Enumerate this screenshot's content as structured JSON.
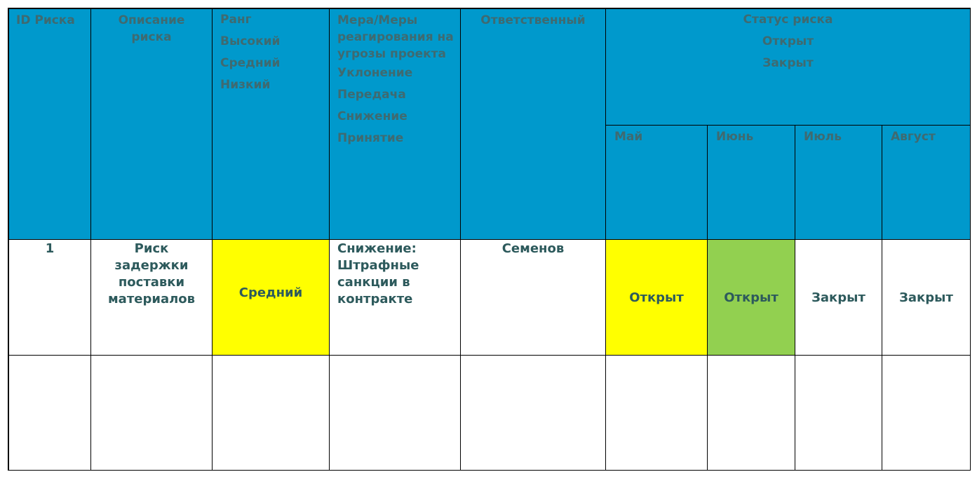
{
  "table": {
    "header": {
      "id": "ID  Риска",
      "description": "Описание риска",
      "rank": [
        "Ранг",
        "Высокий",
        "Средний",
        "Низкий"
      ],
      "response": [
        "Мера/Меры реагирования на угрозы проекта",
        "Уклонение",
        "Передача",
        "Снижение",
        "Принятие"
      ],
      "owner": "Ответственный",
      "status": [
        "Статус риска",
        "Открыт",
        "Закрыт"
      ],
      "months": [
        "Май",
        "Июнь",
        "Июль",
        "Август"
      ]
    },
    "rows": [
      {
        "id": "1",
        "description": "Риск задержки поставки материалов",
        "rank": "Средний",
        "response": "Снижение: Штрафные санкции в контракте",
        "owner": "Семенов",
        "statuses": [
          "Открыт",
          "Открыт",
          "Закрыт",
          "Закрыт"
        ]
      }
    ]
  }
}
